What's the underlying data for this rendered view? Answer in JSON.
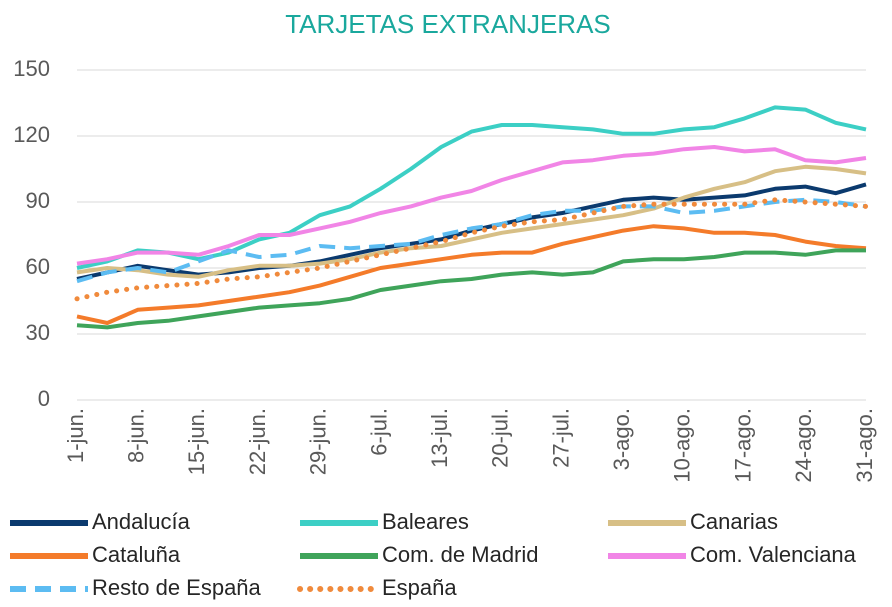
{
  "chart_data": {
    "type": "line",
    "title": "TARJETAS EXTRANJERAS",
    "categories": [
      "1-jun.",
      null,
      "8-jun.",
      null,
      "15-jun.",
      null,
      "22-jun.",
      null,
      "29-jun.",
      null,
      "6-jul.",
      null,
      "13-jul.",
      null,
      "20-jul.",
      null,
      "27-jul.",
      null,
      "3-ago.",
      null,
      "10-ago.",
      null,
      "17-ago.",
      null,
      "24-ago.",
      null,
      "31-ago."
    ],
    "ylim": [
      0,
      150
    ],
    "yticks": [
      0,
      30,
      60,
      90,
      120,
      150
    ],
    "grid": true,
    "legend": "bottom",
    "series": [
      {
        "name": "Andalucía",
        "color": "#0b3a6e",
        "style": "solid",
        "values": [
          55,
          58,
          61,
          59,
          57,
          58,
          60,
          61,
          63,
          66,
          69,
          71,
          73,
          77,
          80,
          83,
          85,
          88,
          91,
          92,
          91,
          92,
          93,
          96,
          97,
          94,
          98
        ]
      },
      {
        "name": "Baleares",
        "color": "#3ccfc5",
        "style": "solid",
        "values": [
          60,
          63,
          68,
          67,
          64,
          67,
          73,
          76,
          84,
          88,
          96,
          105,
          115,
          122,
          125,
          125,
          124,
          123,
          121,
          121,
          123,
          124,
          128,
          133,
          132,
          126,
          123
        ]
      },
      {
        "name": "Canarias",
        "color": "#d7bf86",
        "style": "solid",
        "values": [
          58,
          60,
          59,
          57,
          56,
          59,
          61,
          61,
          62,
          64,
          67,
          69,
          70,
          73,
          76,
          78,
          80,
          82,
          84,
          87,
          92,
          96,
          99,
          104,
          106,
          105,
          103
        ]
      },
      {
        "name": "Cataluña",
        "color": "#f47b2a",
        "style": "solid",
        "values": [
          38,
          35,
          41,
          42,
          43,
          45,
          47,
          49,
          52,
          56,
          60,
          62,
          64,
          66,
          67,
          67,
          71,
          74,
          77,
          79,
          78,
          76,
          76,
          75,
          72,
          70,
          69
        ]
      },
      {
        "name": "Com. de Madrid",
        "color": "#3fa45a",
        "style": "solid",
        "values": [
          34,
          33,
          35,
          36,
          38,
          40,
          42,
          43,
          44,
          46,
          50,
          52,
          54,
          55,
          57,
          58,
          57,
          58,
          63,
          64,
          64,
          65,
          67,
          67,
          66,
          68,
          68
        ]
      },
      {
        "name": "Com. Valenciana",
        "color": "#f185e6",
        "style": "solid",
        "values": [
          62,
          64,
          67,
          67,
          66,
          70,
          75,
          75,
          78,
          81,
          85,
          88,
          92,
          95,
          100,
          104,
          108,
          109,
          111,
          112,
          114,
          115,
          113,
          114,
          109,
          108,
          110
        ]
      },
      {
        "name": "Resto de España",
        "color": "#5cbcf2",
        "style": "dashed",
        "values": [
          54,
          58,
          60,
          58,
          63,
          68,
          65,
          66,
          70,
          69,
          70,
          71,
          75,
          78,
          80,
          84,
          86,
          86,
          88,
          88,
          85,
          86,
          88,
          90,
          91,
          90,
          88
        ]
      },
      {
        "name": "España",
        "color": "#f08a3c",
        "style": "dotted",
        "values": [
          46,
          49,
          51,
          52,
          53,
          55,
          56,
          58,
          60,
          63,
          66,
          69,
          72,
          76,
          79,
          81,
          82,
          85,
          88,
          89,
          89,
          89,
          89,
          91,
          90,
          89,
          88
        ]
      }
    ]
  }
}
